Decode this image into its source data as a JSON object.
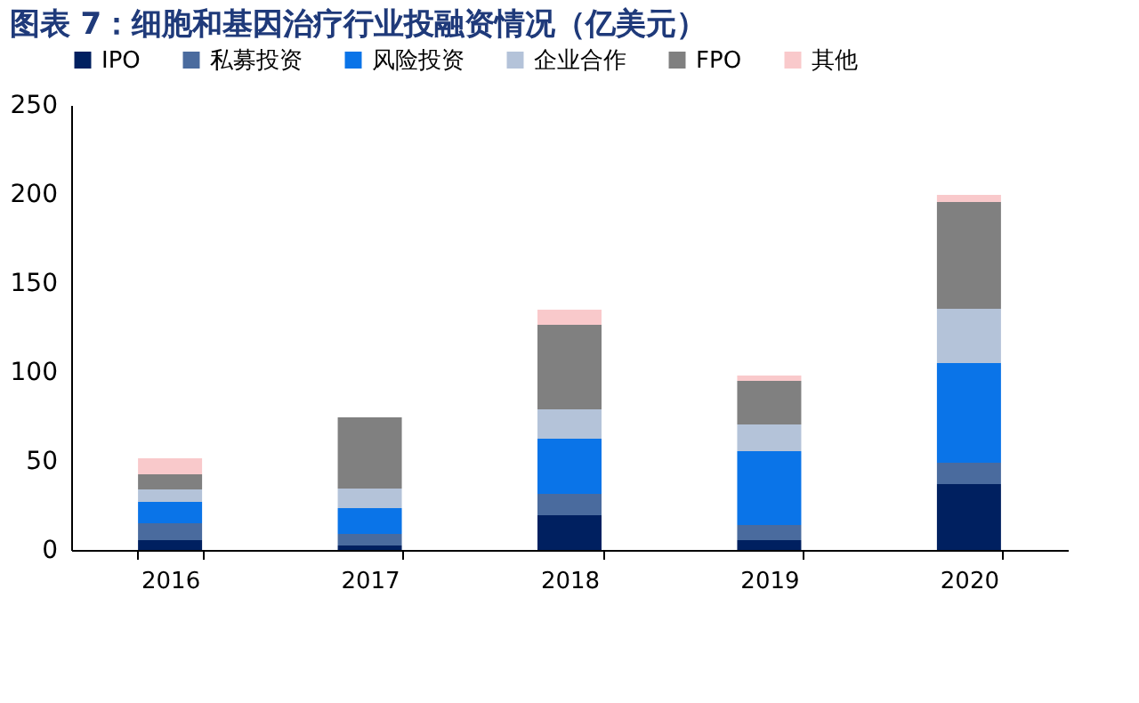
{
  "chart_data": {
    "type": "bar",
    "title": "图表 7：细胞和基因治疗行业投融资情况（亿美元）",
    "stacked": true,
    "legend": "top",
    "grid": false,
    "categories": [
      "2016",
      "2017",
      "2018",
      "2019",
      "2020"
    ],
    "ylim": [
      0,
      250
    ],
    "yticks": [
      0,
      50,
      100,
      150,
      200,
      250
    ],
    "series": [
      {
        "name": "IPO",
        "color": "#002060",
        "values": [
          5.5,
          2.5,
          19.5,
          5.5,
          37
        ]
      },
      {
        "name": "私募投资",
        "color": "#4a6b9e",
        "values": [
          9.5,
          6.5,
          12,
          8.5,
          12
        ]
      },
      {
        "name": "风险投资",
        "color": "#0a74e8",
        "values": [
          12,
          14.5,
          31,
          41.5,
          56
        ]
      },
      {
        "name": "企业合作",
        "color": "#b4c3d9",
        "values": [
          7,
          11,
          16.5,
          15,
          30.5
        ]
      },
      {
        "name": "FPO",
        "color": "#808080",
        "values": [
          8.5,
          40,
          47.5,
          24.5,
          60
        ]
      },
      {
        "name": "其他",
        "color": "#f9c9cb",
        "values": [
          9,
          0,
          8.5,
          3,
          4
        ]
      }
    ]
  }
}
